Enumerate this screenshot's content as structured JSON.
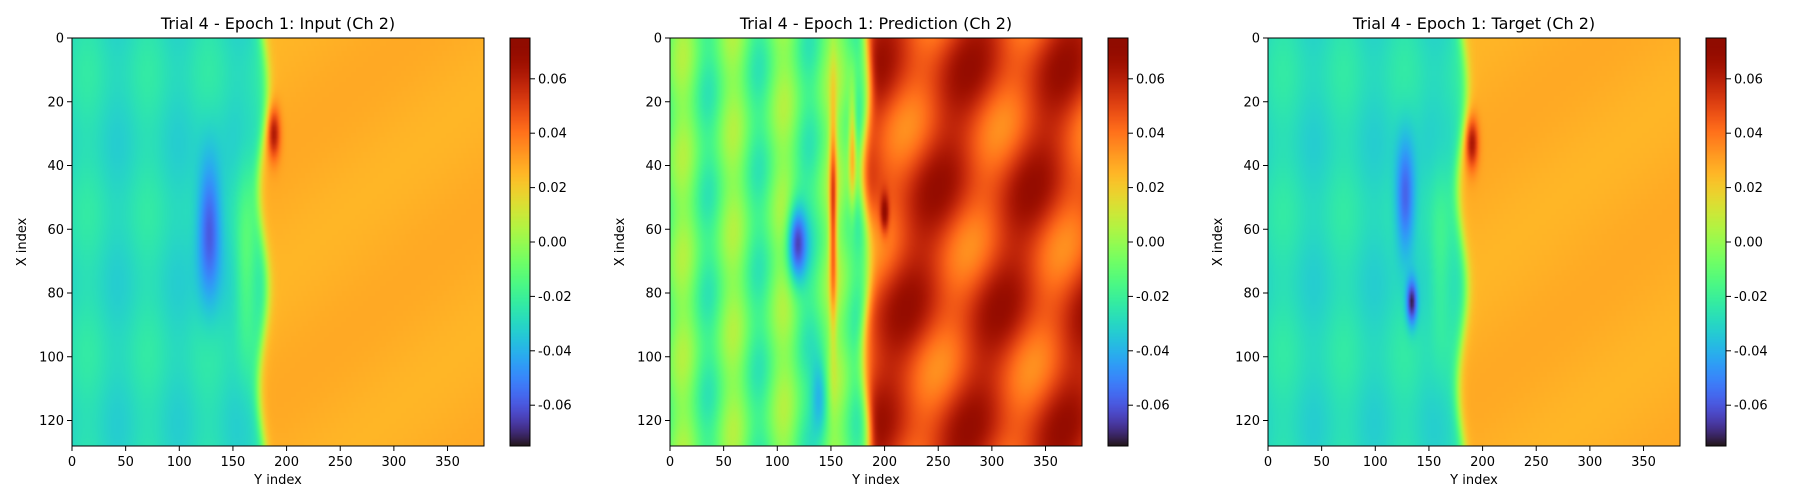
{
  "chart_data": [
    {
      "type": "heatmap",
      "title": "Trial 4 - Epoch 1: Input (Ch 2)",
      "xlabel": "Y index",
      "ylabel": "X index",
      "xlim": [
        0,
        384
      ],
      "ylim": [
        128,
        0
      ],
      "xticks": [
        "0",
        "50",
        "100",
        "150",
        "200",
        "250",
        "300",
        "350"
      ],
      "yticks": [
        "0",
        "20",
        "40",
        "60",
        "80",
        "100",
        "120"
      ],
      "colormap": "turbo",
      "colorbar": {
        "range": [
          -0.075,
          0.075
        ],
        "ticks": [
          "-0.06",
          "-0.04",
          "-0.02",
          "0.00",
          "0.02",
          "0.04",
          "0.06"
        ]
      },
      "field": "input"
    },
    {
      "type": "heatmap",
      "title": "Trial 4 - Epoch 1: Prediction (Ch 2)",
      "xlabel": "Y index",
      "ylabel": "X index",
      "xlim": [
        0,
        384
      ],
      "ylim": [
        128,
        0
      ],
      "xticks": [
        "0",
        "50",
        "100",
        "150",
        "200",
        "250",
        "300",
        "350"
      ],
      "yticks": [
        "0",
        "20",
        "40",
        "60",
        "80",
        "100",
        "120"
      ],
      "colormap": "turbo",
      "colorbar": {
        "range": [
          -0.075,
          0.075
        ],
        "ticks": [
          "-0.06",
          "-0.04",
          "-0.02",
          "0.00",
          "0.02",
          "0.04",
          "0.06"
        ]
      },
      "field": "prediction"
    },
    {
      "type": "heatmap",
      "title": "Trial 4 - Epoch 1: Target (Ch 2)",
      "xlabel": "Y index",
      "ylabel": "X index",
      "xlim": [
        0,
        384
      ],
      "ylim": [
        128,
        0
      ],
      "xticks": [
        "0",
        "50",
        "100",
        "150",
        "200",
        "250",
        "300",
        "350"
      ],
      "yticks": [
        "0",
        "20",
        "40",
        "60",
        "80",
        "100",
        "120"
      ],
      "colormap": "turbo",
      "colorbar": {
        "range": [
          -0.075,
          0.075
        ],
        "ticks": [
          "-0.06",
          "-0.04",
          "-0.02",
          "0.00",
          "0.02",
          "0.04",
          "0.06"
        ]
      },
      "field": "target"
    }
  ]
}
